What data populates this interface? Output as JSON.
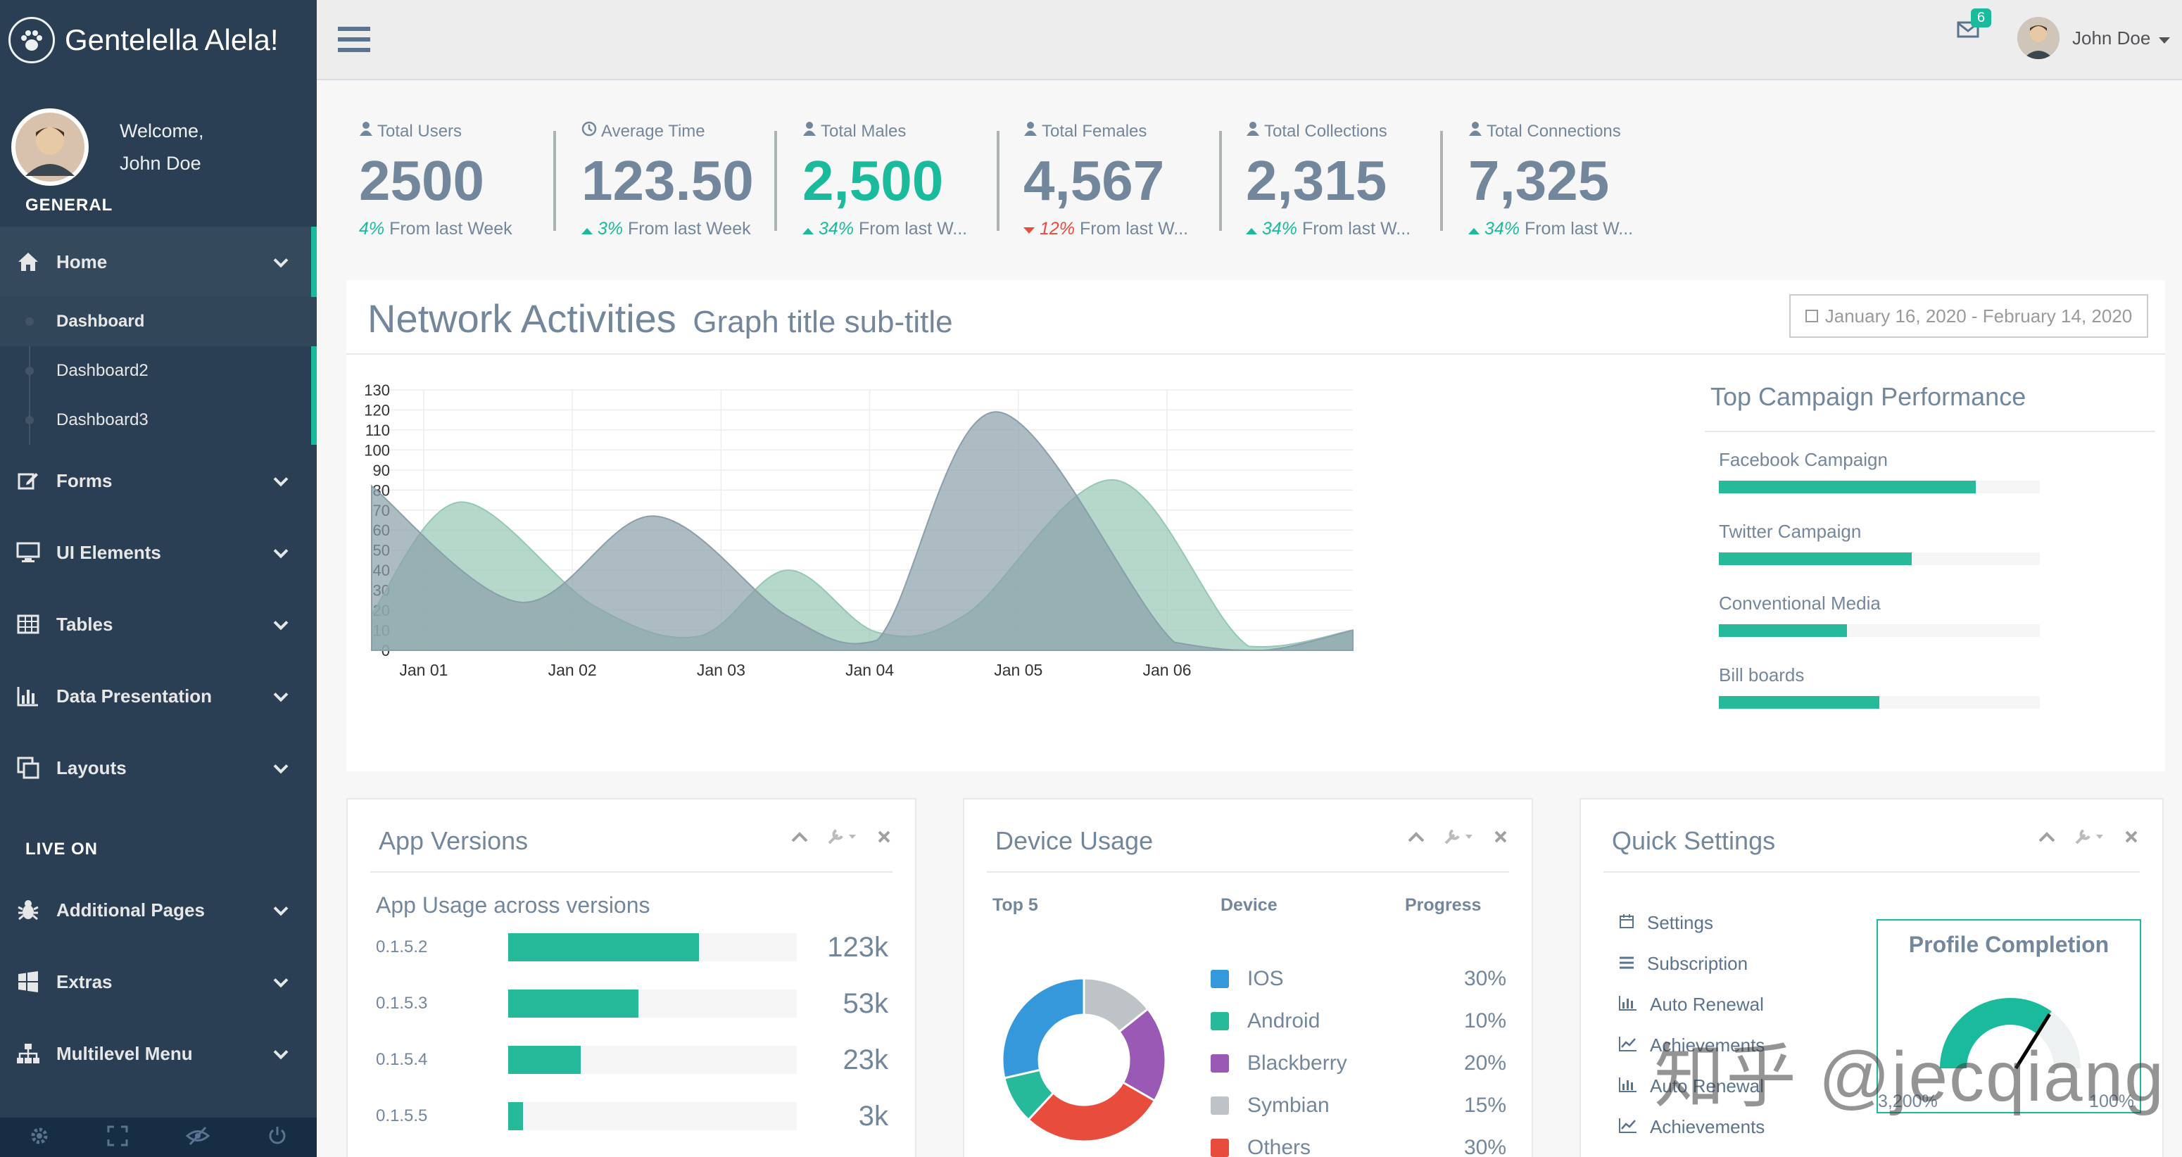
{
  "brand": {
    "name": "Gentelella Alela!",
    "icon": "paw-icon"
  },
  "profile": {
    "welcome": "Welcome,",
    "name": "John Doe"
  },
  "sidebar": {
    "general_title": "GENERAL",
    "live_title": "LIVE ON",
    "home_label": "Home",
    "home_sub": [
      {
        "label": "Dashboard"
      },
      {
        "label": "Dashboard2"
      },
      {
        "label": "Dashboard3"
      }
    ],
    "items": [
      {
        "label": "Forms",
        "icon": "edit-icon"
      },
      {
        "label": "UI Elements",
        "icon": "desktop-icon"
      },
      {
        "label": "Tables",
        "icon": "table-icon"
      },
      {
        "label": "Data Presentation",
        "icon": "bar-chart-icon"
      },
      {
        "label": "Layouts",
        "icon": "clone-icon"
      }
    ],
    "live_items": [
      {
        "label": "Additional Pages",
        "icon": "bug-icon"
      },
      {
        "label": "Extras",
        "icon": "windows-icon"
      },
      {
        "label": "Multilevel Menu",
        "icon": "sitemap-icon"
      }
    ],
    "footer_icons": [
      "settings-icon",
      "fullscreen-icon",
      "eye-slash-icon",
      "power-icon"
    ]
  },
  "topnav": {
    "mail_count": "6",
    "user_name": "John Doe"
  },
  "stats": [
    {
      "label": "Total Users",
      "icon": "user-icon",
      "count": "2500",
      "pct": "4%",
      "foot": " From last Week",
      "trend": "none"
    },
    {
      "label": "Average Time",
      "icon": "clock-icon",
      "count": "123.50",
      "pct": "3%",
      "foot": " From last Week",
      "trend": "up"
    },
    {
      "label": "Total Males",
      "icon": "user-icon",
      "count": "2,500",
      "pct": "34%",
      "foot": " From last W...",
      "trend": "up"
    },
    {
      "label": "Total Females",
      "icon": "user-icon",
      "count": "4,567",
      "pct": "12%",
      "foot": " From last W...",
      "trend": "down"
    },
    {
      "label": "Total Collections",
      "icon": "user-icon",
      "count": "2,315",
      "pct": "34%",
      "foot": " From last W...",
      "trend": "up"
    },
    {
      "label": "Total Connections",
      "icon": "user-icon",
      "count": "7,325",
      "pct": "34%",
      "foot": " From last W...",
      "trend": "up"
    }
  ],
  "network": {
    "title": "Network Activities",
    "subtitle": "Graph title sub-title",
    "date_range": "January 16, 2020 - February 14, 2020"
  },
  "chart_data": {
    "type": "area",
    "x": [
      0,
      1,
      2,
      3,
      4,
      5,
      6
    ],
    "xticks": [
      "Jan 01",
      "Jan 02",
      "Jan 03",
      "Jan 04",
      "Jan 05",
      "Jan 06"
    ],
    "ylim": [
      0,
      130
    ],
    "yticks": [
      0,
      10,
      20,
      30,
      40,
      50,
      60,
      70,
      80,
      90,
      100,
      110,
      120,
      130
    ],
    "grid": true,
    "series": [
      {
        "color": "#95C8B4",
        "points": [
          [
            0,
            18
          ],
          [
            0.6,
            74
          ],
          [
            1.5,
            22
          ],
          [
            2.2,
            7
          ],
          [
            2.8,
            40
          ],
          [
            3.4,
            9
          ],
          [
            4,
            18
          ],
          [
            5.0,
            85
          ],
          [
            5.9,
            2
          ],
          [
            6.6,
            10
          ]
        ]
      },
      {
        "color": "#8A9FAA",
        "points": [
          [
            0,
            82
          ],
          [
            1,
            24
          ],
          [
            1.9,
            67
          ],
          [
            2.8,
            17
          ],
          [
            3.4,
            5
          ],
          [
            4.2,
            119
          ],
          [
            5.4,
            4
          ],
          [
            6.0,
            0
          ],
          [
            6.6,
            10
          ]
        ]
      }
    ]
  },
  "campaigns": {
    "title": "Top Campaign Performance",
    "items": [
      {
        "name": "Facebook Campaign",
        "value": 80
      },
      {
        "name": "Twitter Campaign",
        "value": 60
      },
      {
        "name": "Conventional Media",
        "value": 40
      },
      {
        "name": "Bill boards",
        "value": 50
      }
    ]
  },
  "app_versions": {
    "title": "App Versions",
    "subtitle": "App Usage across versions",
    "rows": [
      {
        "name": "0.1.5.2",
        "value": "123k",
        "pct": 66
      },
      {
        "name": "0.1.5.3",
        "value": "53k",
        "pct": 45
      },
      {
        "name": "0.1.5.4",
        "value": "23k",
        "pct": 25
      },
      {
        "name": "0.1.5.5",
        "value": "3k",
        "pct": 5
      }
    ]
  },
  "device_usage": {
    "title": "Device Usage",
    "headers": {
      "top": "Top 5",
      "device": "Device",
      "progress": "Progress"
    },
    "rows": [
      {
        "name": "IOS",
        "value": "30%",
        "color": "#3498DB"
      },
      {
        "name": "Android",
        "value": "10%",
        "color": "#26B99A"
      },
      {
        "name": "Blackberry",
        "value": "20%",
        "color": "#9B59B6"
      },
      {
        "name": "Symbian",
        "value": "15%",
        "color": "#BDC3C7"
      },
      {
        "name": "Others",
        "value": "30%",
        "color": "#E74C3C"
      }
    ],
    "donut": [
      {
        "name": "Symbian",
        "pct": 15,
        "color": "#BDC3C7"
      },
      {
        "name": "Blackberry",
        "pct": 20,
        "color": "#9B59B6"
      },
      {
        "name": "Others",
        "pct": 30,
        "color": "#E74C3C"
      },
      {
        "name": "Android",
        "pct": 10,
        "color": "#26B99A"
      },
      {
        "name": "IOS",
        "pct": 30,
        "color": "#3498DB"
      }
    ]
  },
  "quick_settings": {
    "title": "Quick Settings",
    "items": [
      {
        "label": "Settings",
        "icon": "calendar-icon"
      },
      {
        "label": "Subscription",
        "icon": "bars-icon"
      },
      {
        "label": "Auto Renewal",
        "icon": "bar-chart-icon"
      },
      {
        "label": "Achievements",
        "icon": "line-chart-icon"
      },
      {
        "label": "Auto Renewal",
        "icon": "bar-chart-icon"
      },
      {
        "label": "Achievements",
        "icon": "line-chart-icon"
      }
    ]
  },
  "profile_completion": {
    "title": "Profile Completion",
    "min": "3,200%",
    "max": "100%",
    "level": 70
  },
  "watermark": "知乎 @jecqiang"
}
